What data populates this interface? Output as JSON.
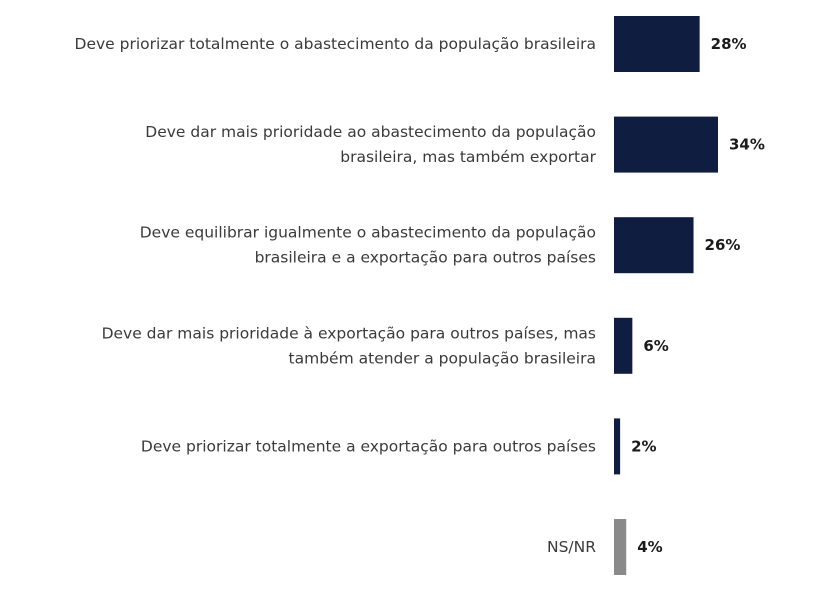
{
  "chart_data": {
    "type": "bar",
    "orientation": "horizontal",
    "categories": [
      "Deve priorizar totalmente o abastecimento da população brasileira",
      "Deve dar mais prioridade ao abastecimento da população brasileira, mas também exportar",
      "Deve equilibrar igualmente o abastecimento da população brasileira e a exportação para outros países",
      "Deve dar mais prioridade à exportação para outros países, mas também atender a população brasileira",
      "Deve priorizar totalmente a exportação para outros países",
      "NS/NR"
    ],
    "category_lines": [
      [
        "Deve priorizar totalmente o abastecimento da população brasileira"
      ],
      [
        "Deve dar mais prioridade ao abastecimento da população",
        "brasileira, mas também exportar"
      ],
      [
        "Deve equilibrar igualmente o abastecimento da população",
        "brasileira e a exportação para outros países"
      ],
      [
        "Deve dar mais prioridade à exportação para outros países, mas",
        "também atender a população brasileira"
      ],
      [
        "Deve priorizar totalmente a exportação para outros países"
      ],
      [
        "NS/NR"
      ]
    ],
    "values": [
      28,
      34,
      26,
      6,
      2,
      4
    ],
    "value_labels": [
      "28%",
      "34%",
      "26%",
      "6%",
      "2%",
      "4%"
    ],
    "bar_colors": [
      "#0f1e40",
      "#0f1e40",
      "#0f1e40",
      "#0f1e40",
      "#0f1e40",
      "#8a8a8a"
    ],
    "xlim": [
      0,
      34
    ],
    "grid": false,
    "legend": "none"
  }
}
